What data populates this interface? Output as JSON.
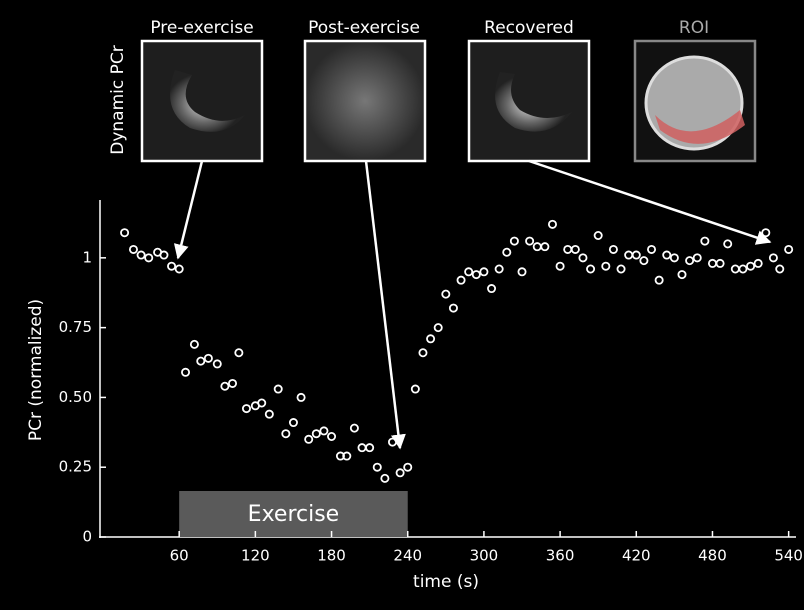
{
  "chart_data": {
    "type": "scatter",
    "panel_label": "Dynamic PCr",
    "images": [
      {
        "label": "Pre-exercise"
      },
      {
        "label": "Post-exercise"
      },
      {
        "label": "Recovered"
      },
      {
        "label": "ROI"
      }
    ],
    "xlabel": "time (s)",
    "ylabel": "PCr (normalized)",
    "xlim": [
      0,
      545
    ],
    "ylim": [
      0,
      1.2
    ],
    "xticks": [
      60,
      120,
      180,
      240,
      300,
      360,
      420,
      480,
      540
    ],
    "yticks": [
      0,
      0.25,
      {
        "value": 0.5,
        "label": "0.50"
      },
      0.75,
      1
    ],
    "exercise": {
      "label": "Exercise",
      "start": 60,
      "end": 240
    },
    "color": "#ffffff",
    "x": [
      17,
      24,
      30,
      36,
      43,
      48,
      54,
      60,
      65,
      72,
      77,
      83,
      90,
      96,
      102,
      107,
      113,
      120,
      125,
      131,
      138,
      144,
      150,
      156,
      162,
      168,
      174,
      180,
      187,
      192,
      198,
      204,
      210,
      216,
      222,
      228,
      234,
      240,
      246,
      252,
      258,
      264,
      270,
      276,
      282,
      288,
      294,
      300,
      306,
      312,
      318,
      324,
      330,
      336,
      342,
      348,
      354,
      360,
      366,
      372,
      378,
      384,
      390,
      396,
      402,
      408,
      414,
      420,
      426,
      432,
      438,
      444,
      450,
      456,
      462,
      468,
      474,
      480,
      486,
      492,
      498,
      504,
      510,
      516,
      522,
      528,
      533,
      540
    ],
    "y": [
      1.09,
      1.03,
      1.01,
      1.0,
      1.02,
      1.01,
      0.97,
      0.96,
      0.59,
      0.69,
      0.63,
      0.64,
      0.62,
      0.54,
      0.55,
      0.66,
      0.46,
      0.47,
      0.48,
      0.44,
      0.53,
      0.37,
      0.41,
      0.5,
      0.35,
      0.37,
      0.38,
      0.36,
      0.29,
      0.29,
      0.39,
      0.32,
      0.32,
      0.25,
      0.21,
      0.34,
      0.23,
      0.25,
      0.53,
      0.66,
      0.71,
      0.75,
      0.87,
      0.82,
      0.92,
      0.95,
      0.94,
      0.95,
      0.89,
      0.96,
      1.02,
      1.06,
      0.95,
      1.06,
      1.04,
      1.04,
      1.12,
      0.97,
      1.03,
      1.03,
      1.0,
      0.96,
      1.08,
      0.97,
      1.03,
      0.96,
      1.01,
      1.01,
      0.99,
      1.03,
      0.92,
      1.01,
      1.0,
      0.94,
      0.99,
      1.0,
      1.06,
      0.98,
      0.98,
      1.05,
      0.96,
      0.96,
      0.97,
      0.98,
      1.09,
      1.0,
      0.96,
      1.03
    ]
  }
}
